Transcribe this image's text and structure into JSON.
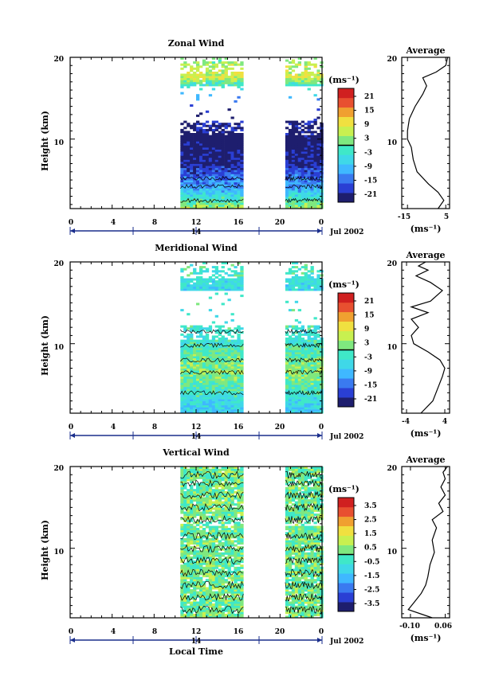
{
  "chart_data": [
    {
      "type": "heatmap",
      "title": "Zonal Wind",
      "ylabel": "Height (km)",
      "yticks": [
        "20",
        "10"
      ],
      "ylim": [
        1.5,
        20
      ],
      "xticks": [
        "0",
        "4",
        "8",
        "12",
        "16",
        "20",
        "0"
      ],
      "xlim": [
        0,
        24
      ],
      "date_day": "14",
      "date_label": "Jul 2002",
      "cbar_unit": "(ms⁻¹)",
      "cbar_ticks": [
        "21",
        "15",
        "9",
        "3",
        "-3",
        "-9",
        "-15",
        "-21"
      ],
      "data_windows": [
        [
          10.5,
          16.5
        ],
        [
          20.5,
          24
        ]
      ],
      "profile_wind": [
        [
          1.5,
          4
        ],
        [
          4.0,
          -11
        ],
        [
          7.0,
          -21
        ],
        [
          10.0,
          -24
        ],
        [
          13.0,
          -20
        ],
        [
          16.5,
          -3
        ],
        [
          17.5,
          8
        ],
        [
          20,
          2
        ]
      ],
      "average": {
        "title": "Average",
        "xticks": [
          "-15",
          "5"
        ],
        "xlim": [
          -18,
          7
        ],
        "xunit": "(ms⁻¹)",
        "yticks": [
          "20",
          "10"
        ],
        "profile": [
          [
            1.5,
            1
          ],
          [
            2.5,
            4
          ],
          [
            3.5,
            1
          ],
          [
            4.5,
            -4
          ],
          [
            6.0,
            -10
          ],
          [
            7.5,
            -12
          ],
          [
            9.0,
            -13
          ],
          [
            10.0,
            -15
          ],
          [
            11.0,
            -15
          ],
          [
            12.5,
            -14
          ],
          [
            14.0,
            -11
          ],
          [
            15.5,
            -7
          ],
          [
            16.5,
            -5
          ],
          [
            17.5,
            -7
          ],
          [
            18.2,
            0
          ],
          [
            19.0,
            5
          ],
          [
            20.0,
            6
          ]
        ]
      }
    },
    {
      "type": "heatmap",
      "title": "Meridional Wind",
      "ylabel": "Height (km)",
      "yticks": [
        "20",
        "10"
      ],
      "ylim": [
        1.5,
        20
      ],
      "xticks": [
        "0",
        "4",
        "8",
        "12",
        "16",
        "20",
        "0"
      ],
      "xlim": [
        0,
        24
      ],
      "date_day": "14",
      "date_label": "Jul 2002",
      "cbar_unit": "(ms⁻¹)",
      "cbar_ticks": [
        "21",
        "15",
        "9",
        "3",
        "-3",
        "-9",
        "-15",
        "-21"
      ],
      "data_windows": [
        [
          10.5,
          16.5
        ],
        [
          20.5,
          24
        ]
      ],
      "profile_wind": [
        [
          1.5,
          -7
        ],
        [
          3.0,
          -5
        ],
        [
          5.0,
          0
        ],
        [
          6.5,
          3
        ],
        [
          8.0,
          1
        ],
        [
          9.5,
          -2
        ],
        [
          11.0,
          -4
        ],
        [
          14.0,
          -2
        ],
        [
          16.5,
          -6
        ],
        [
          18.0,
          -3
        ],
        [
          20,
          -1
        ]
      ],
      "average": {
        "title": "Average",
        "xticks": [
          "-4",
          "4"
        ],
        "xlim": [
          -5,
          5
        ],
        "xunit": "(ms⁻¹)",
        "yticks": [
          "20",
          "10"
        ],
        "profile": [
          [
            1.5,
            -1
          ],
          [
            3.0,
            1.5
          ],
          [
            4.5,
            2.5
          ],
          [
            6.0,
            3.5
          ],
          [
            7.0,
            4.0
          ],
          [
            8.0,
            3.0
          ],
          [
            9.0,
            0.5
          ],
          [
            10.0,
            -2.5
          ],
          [
            11.0,
            -3.0
          ],
          [
            12.0,
            -1.5
          ],
          [
            13.0,
            -3.0
          ],
          [
            13.8,
            0.5
          ],
          [
            14.5,
            -3.0
          ],
          [
            15.2,
            1.0
          ],
          [
            16.5,
            3.5
          ],
          [
            17.5,
            1.0
          ],
          [
            18.3,
            -2.0
          ],
          [
            19.0,
            0.5
          ],
          [
            19.5,
            -1.5
          ],
          [
            20.0,
            0.0
          ]
        ]
      }
    },
    {
      "type": "heatmap",
      "title": "Vertical Wind",
      "ylabel": "Height (km)",
      "yticks": [
        "20",
        "10"
      ],
      "ylim": [
        1.5,
        20
      ],
      "xticks": [
        "0",
        "4",
        "8",
        "12",
        "16",
        "20",
        "0"
      ],
      "xlim": [
        0,
        24
      ],
      "date_day": "14",
      "date_label": "Jul 2002",
      "xlabel": "Local Time",
      "cbar_unit": "(ms⁻¹)",
      "cbar_ticks": [
        "3.5",
        "2.5",
        "1.5",
        "0.5",
        "-0.5",
        "-1.5",
        "-2.5",
        "-3.5"
      ],
      "data_windows": [
        [
          10.5,
          16.5
        ],
        [
          20.5,
          24
        ]
      ],
      "profile_wind": [
        [
          1.5,
          0.2
        ],
        [
          20,
          0.2
        ]
      ],
      "average": {
        "title": "Average",
        "xticks": [
          "-0.10",
          "0.06"
        ],
        "xlim": [
          -0.14,
          0.08
        ],
        "xunit": "(ms⁻¹)",
        "yticks": [
          "20",
          "10"
        ],
        "profile": [
          [
            1.5,
            0.0
          ],
          [
            2.5,
            -0.11
          ],
          [
            3.5,
            -0.08
          ],
          [
            4.5,
            -0.05
          ],
          [
            5.5,
            -0.03
          ],
          [
            6.5,
            -0.02
          ],
          [
            8.0,
            -0.01
          ],
          [
            9.5,
            0.01
          ],
          [
            11.0,
            0.0
          ],
          [
            12.5,
            0.02
          ],
          [
            13.5,
            0.0
          ],
          [
            14.5,
            0.05
          ],
          [
            15.5,
            0.03
          ],
          [
            16.5,
            0.06
          ],
          [
            17.5,
            0.04
          ],
          [
            18.5,
            0.06
          ],
          [
            19.3,
            0.05
          ],
          [
            20.0,
            0.07
          ]
        ]
      }
    }
  ],
  "colors": {
    "scale": [
      "#1e1e6e",
      "#2a3fd4",
      "#3a7af0",
      "#3fb8ff",
      "#3fd8e8",
      "#3fe8c8",
      "#7fe87f",
      "#c8f050",
      "#f0e040",
      "#f0a030",
      "#e85030",
      "#d02020"
    ]
  }
}
